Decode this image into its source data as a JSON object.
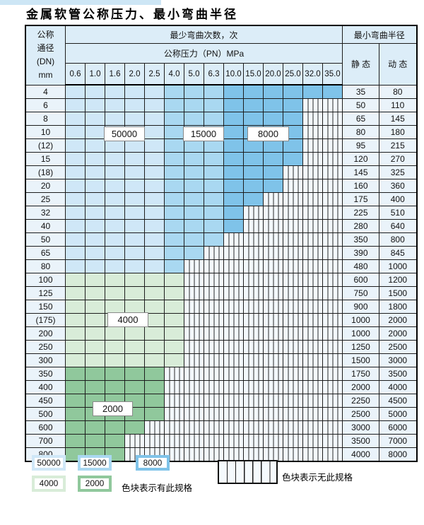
{
  "page": {
    "title": "金属软管公称压力、最小弯曲半径"
  },
  "table": {
    "corner": [
      "公称",
      "通径",
      "(DN)",
      "mm"
    ],
    "bend_cycles_header": "最少弯曲次数，次",
    "pressure_header": "公称压力（PN）MPa",
    "radius_header": "最小弯曲半径",
    "static_header": "静 态",
    "dynamic_header": "动 态",
    "pressure_columns": [
      "0.6",
      "1.0",
      "1.6",
      "2.0",
      "2.5",
      "4.0",
      "5.0",
      "6.3",
      "10.0",
      "15.0",
      "20.0",
      "25.0",
      "32.0",
      "35.0"
    ],
    "rows": [
      {
        "dn": "4",
        "colored_through": "35.0",
        "fill": "blue",
        "static": "35",
        "dynamic": "80"
      },
      {
        "dn": "6",
        "colored_through": "25.0",
        "fill": "blue",
        "static": "50",
        "dynamic": "110"
      },
      {
        "dn": "8",
        "colored_through": "25.0",
        "fill": "blue",
        "static": "65",
        "dynamic": "145"
      },
      {
        "dn": "10",
        "colored_through": "25.0",
        "fill": "blue",
        "static": "80",
        "dynamic": "180"
      },
      {
        "dn": "(12)",
        "colored_through": "25.0",
        "fill": "blue",
        "static": "95",
        "dynamic": "215"
      },
      {
        "dn": "15",
        "colored_through": "25.0",
        "fill": "blue",
        "static": "120",
        "dynamic": "270"
      },
      {
        "dn": "(18)",
        "colored_through": "20.0",
        "fill": "blue",
        "static": "145",
        "dynamic": "325"
      },
      {
        "dn": "20",
        "colored_through": "20.0",
        "fill": "blue",
        "static": "160",
        "dynamic": "360"
      },
      {
        "dn": "25",
        "colored_through": "15.0",
        "fill": "blue",
        "static": "175",
        "dynamic": "400"
      },
      {
        "dn": "32",
        "colored_through": "10.0",
        "fill": "blue",
        "static": "225",
        "dynamic": "510"
      },
      {
        "dn": "40",
        "colored_through": "10.0",
        "fill": "blue",
        "static": "280",
        "dynamic": "640"
      },
      {
        "dn": "50",
        "colored_through": "6.3",
        "fill": "blue",
        "static": "350",
        "dynamic": "800"
      },
      {
        "dn": "65",
        "colored_through": "5.0",
        "fill": "blue",
        "static": "390",
        "dynamic": "845"
      },
      {
        "dn": "80",
        "colored_through": "4.0",
        "fill": "blue",
        "static": "480",
        "dynamic": "1000"
      },
      {
        "dn": "100",
        "colored_through": "4.0",
        "fill": "green4000",
        "static": "600",
        "dynamic": "1200"
      },
      {
        "dn": "125",
        "colored_through": "4.0",
        "fill": "green4000",
        "static": "750",
        "dynamic": "1500"
      },
      {
        "dn": "150",
        "colored_through": "4.0",
        "fill": "green4000",
        "static": "900",
        "dynamic": "1800"
      },
      {
        "dn": "(175)",
        "colored_through": "4.0",
        "fill": "green4000",
        "static": "1000",
        "dynamic": "2000"
      },
      {
        "dn": "200",
        "colored_through": "4.0",
        "fill": "green4000",
        "static": "1000",
        "dynamic": "2000"
      },
      {
        "dn": "250",
        "colored_through": "4.0",
        "fill": "green4000",
        "static": "1250",
        "dynamic": "2500"
      },
      {
        "dn": "300",
        "colored_through": "4.0",
        "fill": "green4000",
        "static": "1500",
        "dynamic": "3000"
      },
      {
        "dn": "350",
        "colored_through": "2.5",
        "fill": "green2000",
        "static": "1750",
        "dynamic": "3500"
      },
      {
        "dn": "400",
        "colored_through": "2.5",
        "fill": "green2000",
        "static": "2000",
        "dynamic": "4000"
      },
      {
        "dn": "450",
        "colored_through": "2.5",
        "fill": "green2000",
        "static": "2250",
        "dynamic": "4500"
      },
      {
        "dn": "500",
        "colored_through": "2.5",
        "fill": "green2000",
        "static": "2500",
        "dynamic": "5000"
      },
      {
        "dn": "600",
        "colored_through": "2.0",
        "fill": "green2000",
        "static": "3000",
        "dynamic": "6000"
      },
      {
        "dn": "700",
        "colored_through": "1.6",
        "fill": "green2000",
        "static": "3500",
        "dynamic": "7000"
      },
      {
        "dn": "800",
        "colored_through": "1.6",
        "fill": "green2000",
        "static": "4000",
        "dynamic": "8000"
      }
    ]
  },
  "region_labels": [
    {
      "text": "50000"
    },
    {
      "text": "15000"
    },
    {
      "text": "8000"
    },
    {
      "text": "4000"
    },
    {
      "text": "2000"
    }
  ],
  "legend": {
    "items": [
      {
        "label": "50000",
        "color": "#cfe7f7"
      },
      {
        "label": "15000",
        "color": "#a9d8f1"
      },
      {
        "label": "8000",
        "color": "#7fc3e9"
      },
      {
        "label": "4000",
        "color": "#d8ecd8"
      },
      {
        "label": "2000",
        "color": "#90c89c"
      }
    ],
    "has_spec_text": "色块表示有此规格",
    "no_spec_text": "色块表示无此规格"
  },
  "colors": {
    "region_50000": "#cfe7f7",
    "region_15000": "#a9d8f1",
    "region_8000": "#7fc3e9",
    "region_4000": "#d8ecd8",
    "region_2000": "#90c89c",
    "header_bg": "#dcedf8",
    "label_col_bg": "#eaf3fa",
    "border": "#1d1d1d"
  }
}
